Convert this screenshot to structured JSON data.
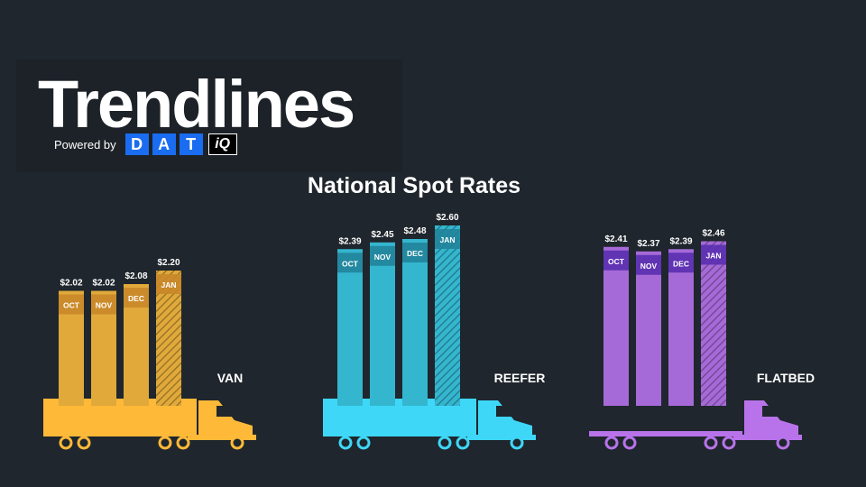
{
  "brand": {
    "title": "Trendlines",
    "powered_by": "Powered by",
    "logo_letters": [
      "D",
      "A",
      "T"
    ],
    "logo_suffix": "iQ",
    "accent": "#1a6cf0"
  },
  "chart_data": [
    {
      "type": "bar",
      "title": "National Spot Rates",
      "name": "VAN",
      "categories": [
        "OCT",
        "NOV",
        "DEC",
        "JAN"
      ],
      "values": [
        2.02,
        2.02,
        2.08,
        2.2
      ],
      "value_labels": [
        "$2.02",
        "$2.02",
        "$2.08",
        "$2.20"
      ],
      "hatched_last": true,
      "color": "#e0a93a",
      "truck_color": "#ffb938",
      "label_band_color": "#c9872a"
    },
    {
      "type": "bar",
      "name": "REEFER",
      "categories": [
        "OCT",
        "NOV",
        "DEC",
        "JAN"
      ],
      "values": [
        2.39,
        2.45,
        2.48,
        2.6
      ],
      "value_labels": [
        "$2.39",
        "$2.45",
        "$2.48",
        "$2.60"
      ],
      "hatched_last": true,
      "color": "#34b6cf",
      "truck_color": "#3ed7f7",
      "label_band_color": "#21849a"
    },
    {
      "type": "bar",
      "name": "FLATBED",
      "categories": [
        "OCT",
        "NOV",
        "DEC",
        "JAN"
      ],
      "values": [
        2.41,
        2.37,
        2.39,
        2.46
      ],
      "value_labels": [
        "$2.41",
        "$2.37",
        "$2.39",
        "$2.46"
      ],
      "hatched_last": true,
      "color": "#a66ad8",
      "truck_color": "#b873ea",
      "label_band_color": "#5a2fb0"
    }
  ]
}
